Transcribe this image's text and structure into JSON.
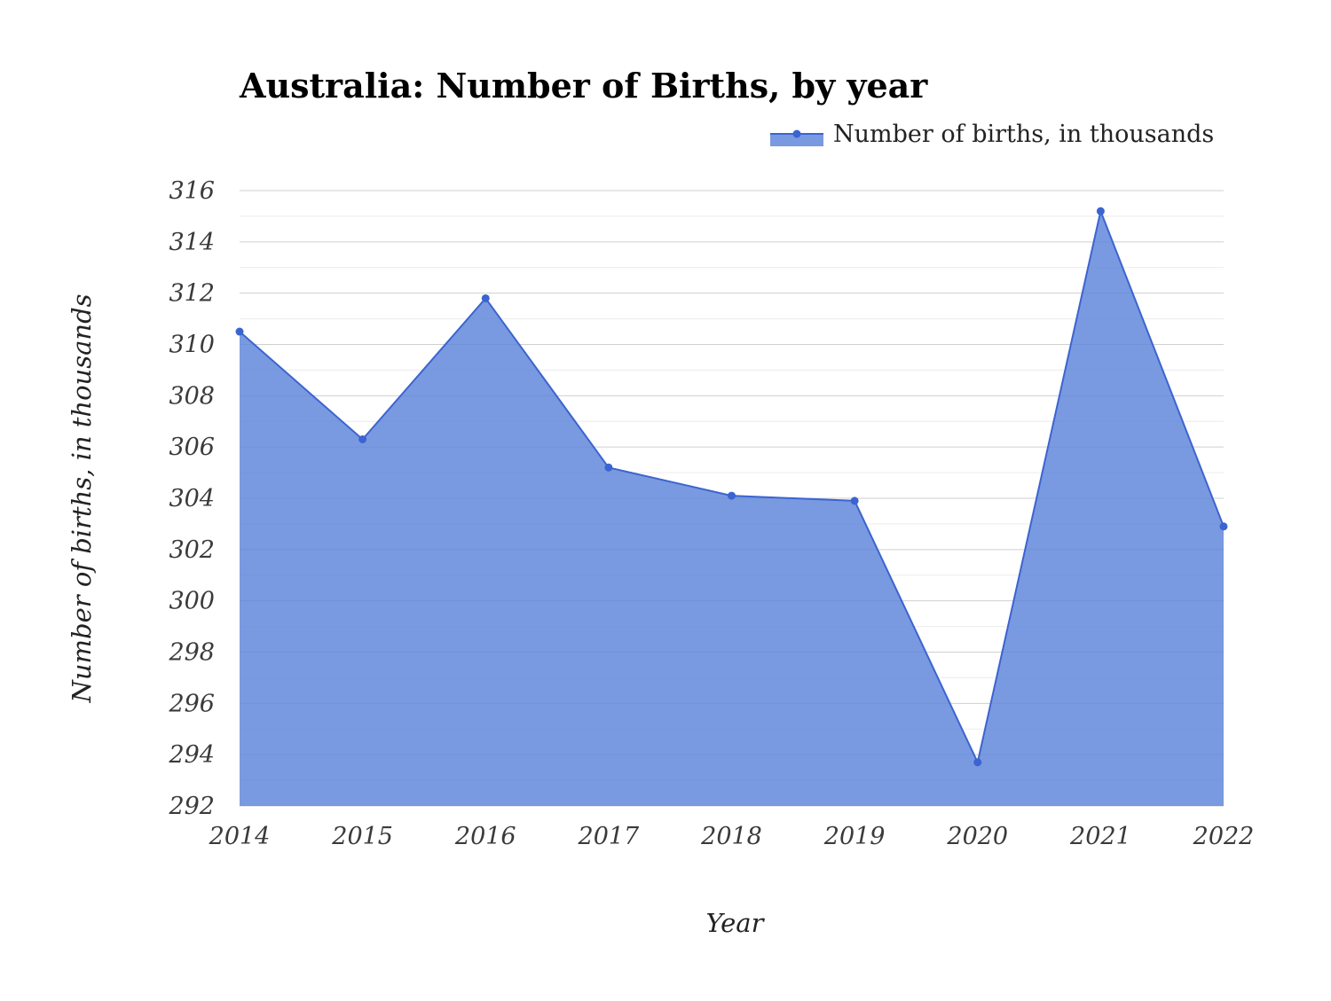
{
  "chart_data": {
    "type": "area",
    "title": "Australia: Number of Births, by year",
    "xlabel": "Year",
    "ylabel": "Number of births, in thousands",
    "categories": [
      "2014",
      "2015",
      "2016",
      "2017",
      "2018",
      "2019",
      "2020",
      "2021",
      "2022"
    ],
    "series": [
      {
        "name": "Number of births, in thousands",
        "values": [
          310.5,
          306.3,
          311.8,
          305.2,
          304.1,
          303.9,
          293.7,
          315.2,
          302.9
        ],
        "color": "#3c64d0",
        "fill_color": "#5b84d9"
      }
    ],
    "ylim": [
      292,
      316
    ],
    "yticks": [
      "292",
      "294",
      "296",
      "298",
      "300",
      "302",
      "304",
      "306",
      "308",
      "310",
      "312",
      "314",
      "316"
    ],
    "grid": true,
    "legend_position": "top-right"
  }
}
